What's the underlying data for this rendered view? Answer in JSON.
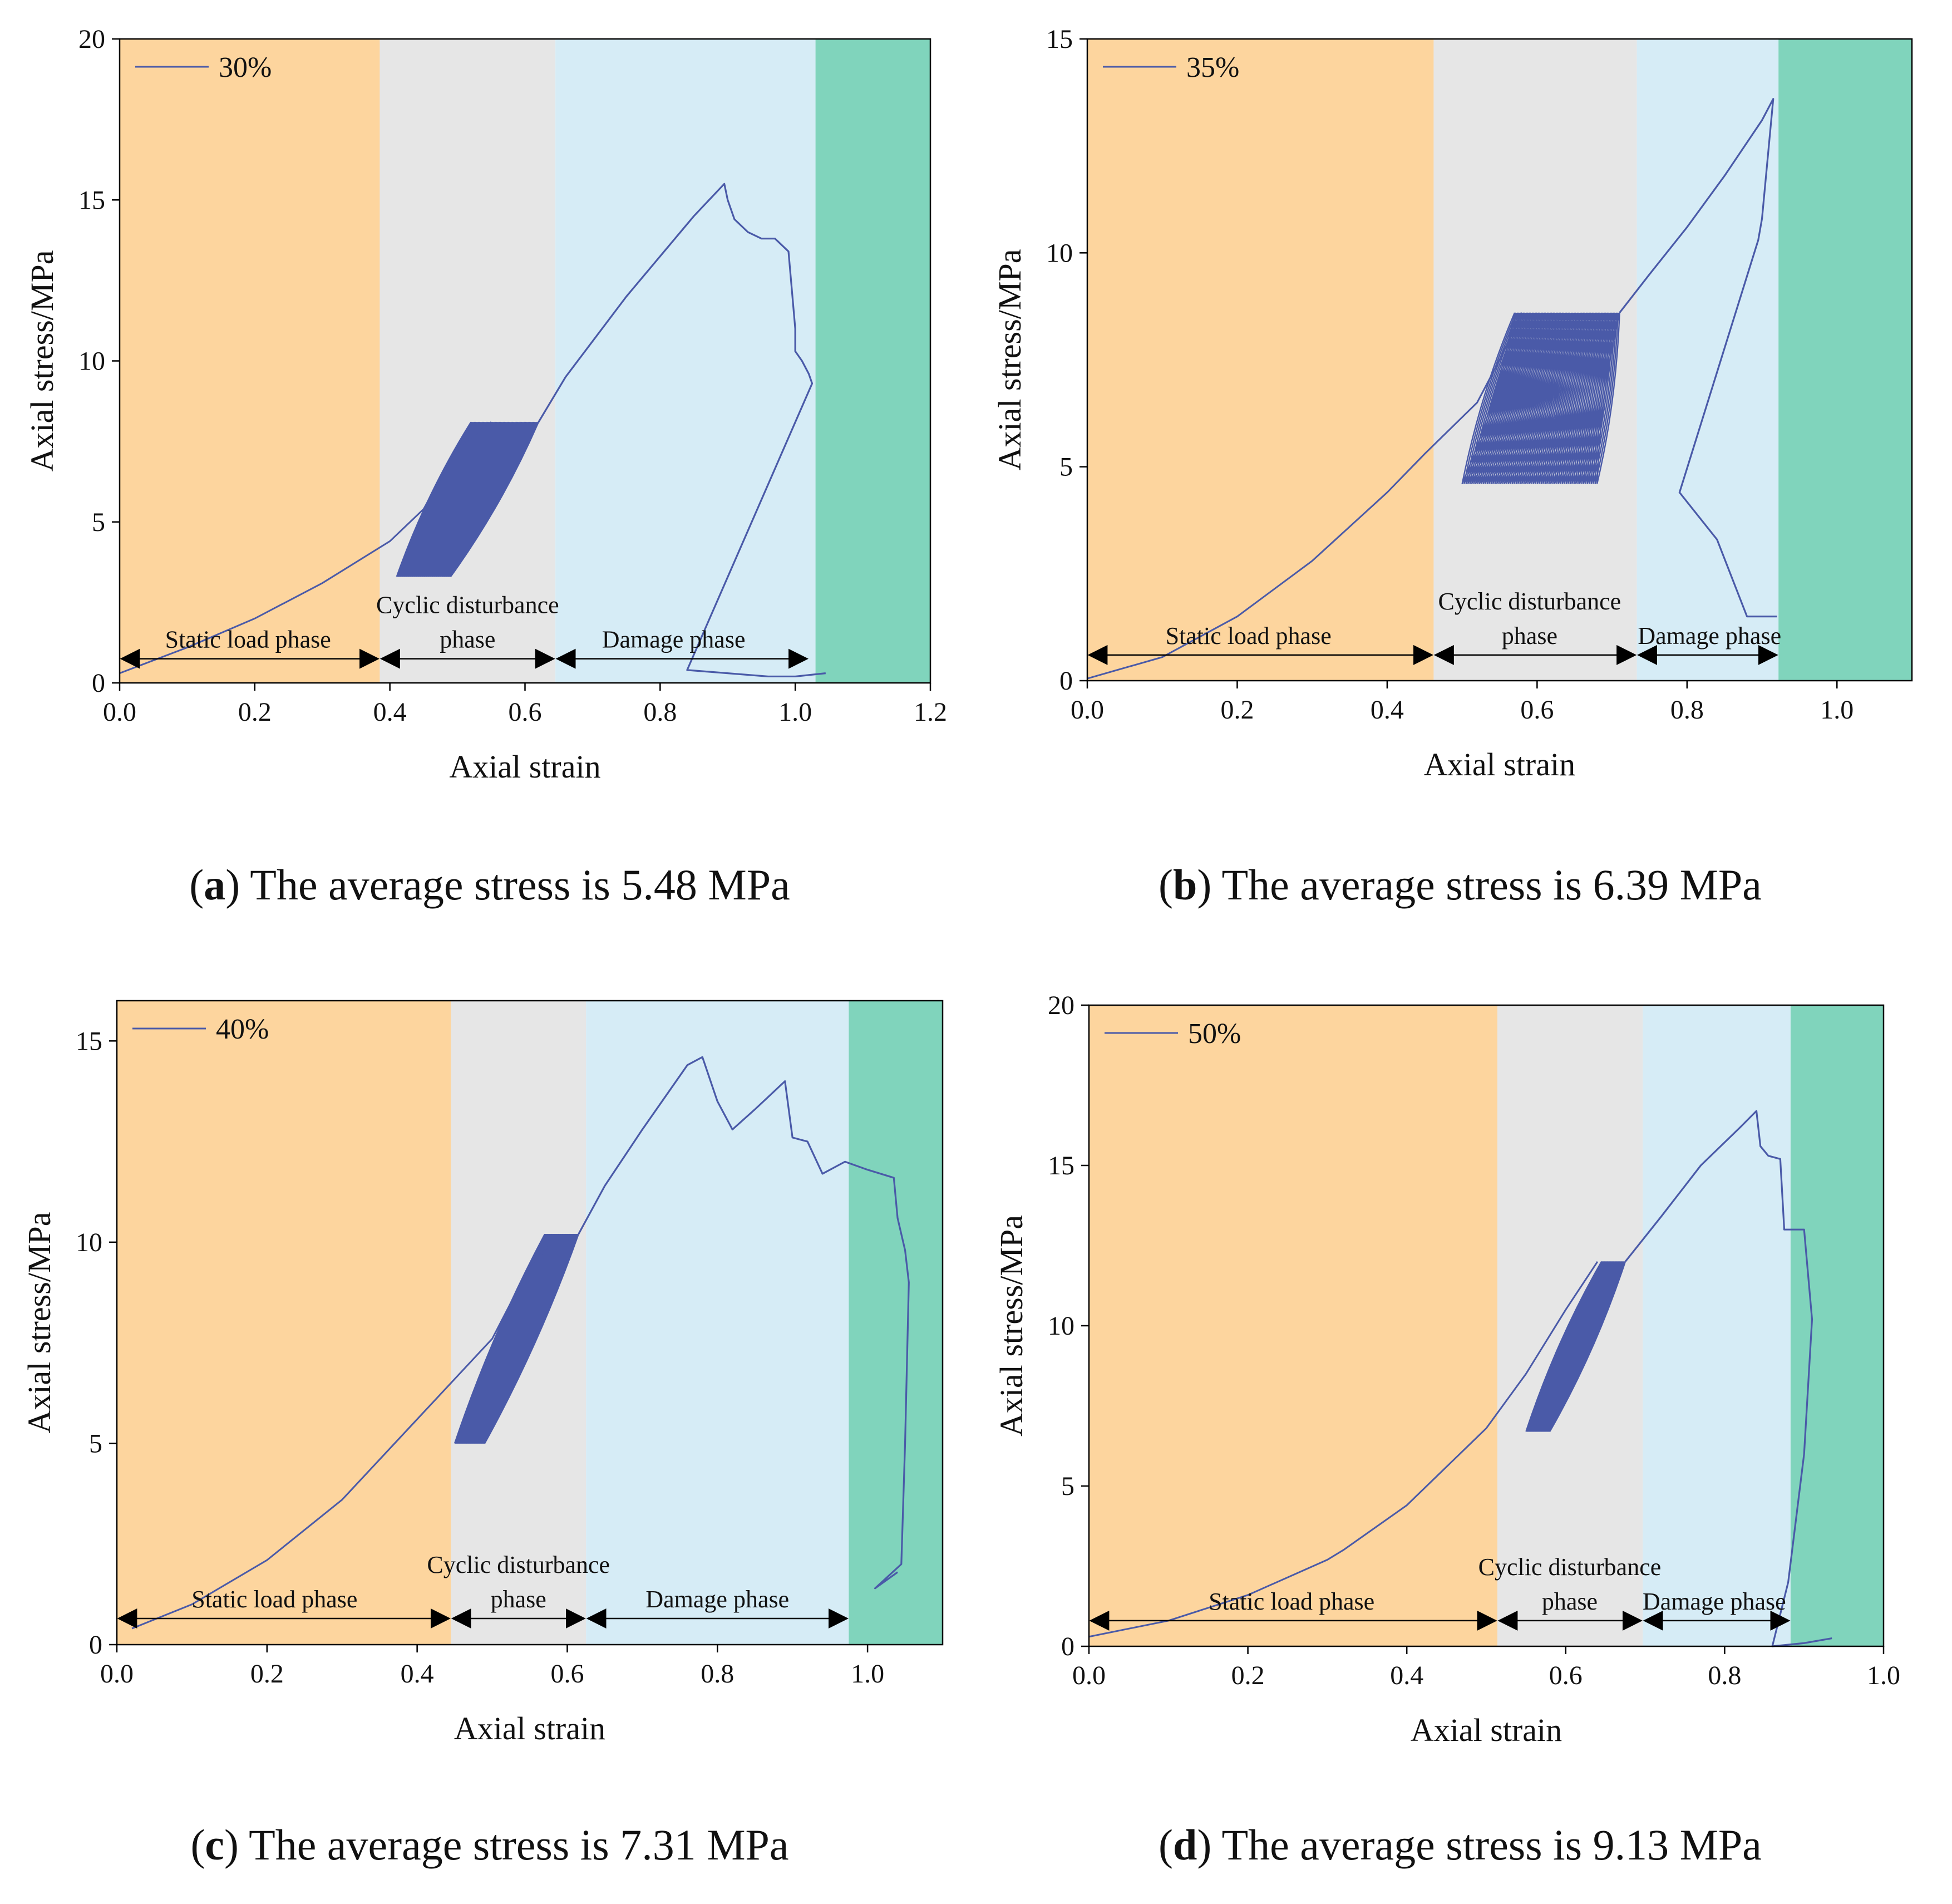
{
  "colors": {
    "static": "#FDD59E",
    "cyclic": "#E6E6E6",
    "damage": "#D6ECF6",
    "failure": "#80D4BC",
    "curve": "#4A5AA8",
    "arrow": "#000000"
  },
  "chart_data": [
    {
      "type": "line",
      "panel_letter": "a",
      "caption_text": " The average stress is 5.48 MPa",
      "xlabel": "Axial strain",
      "ylabel": "Axial stress/MPa",
      "xlim": [
        0,
        1.2
      ],
      "ylim": [
        0,
        20
      ],
      "xticks": [
        0.0,
        0.2,
        0.4,
        0.6,
        0.8,
        1.0,
        1.2
      ],
      "xtick_labels": [
        "0.0",
        "0.2",
        "0.4",
        "0.6",
        "0.8",
        "1.0",
        "1.2"
      ],
      "yticks": [
        0,
        5,
        10,
        15,
        20
      ],
      "ytick_labels": [
        "0",
        "5",
        "10",
        "15",
        "20"
      ],
      "legend": "30%",
      "phases": [
        {
          "key": "static",
          "from": 0.0,
          "to": 0.385
        },
        {
          "key": "cyclic",
          "from": 0.385,
          "to": 0.645
        },
        {
          "key": "damage",
          "from": 0.645,
          "to": 1.03
        },
        {
          "key": "failure",
          "from": 1.03,
          "to": 1.2
        }
      ],
      "phase_labels": [
        {
          "lines": [
            "Static load phase"
          ],
          "x": 0.19,
          "x_from": 0.0,
          "x_to": 0.385
        },
        {
          "lines": [
            "Cyclic disturbance",
            "phase"
          ],
          "x": 0.515,
          "x_from": 0.385,
          "x_to": 0.645
        },
        {
          "lines": [
            "Damage phase"
          ],
          "x": 0.82,
          "x_from": 0.645,
          "x_to": 1.02
        }
      ],
      "arrow_y": 0.75,
      "loading_curve": [
        [
          0,
          0.3
        ],
        [
          0.1,
          1.1
        ],
        [
          0.2,
          2.0
        ],
        [
          0.3,
          3.1
        ],
        [
          0.4,
          4.4
        ],
        [
          0.45,
          5.4
        ],
        [
          0.5,
          7.3
        ],
        [
          0.55,
          8.1
        ]
      ],
      "cycles": {
        "x_min_start": 0.41,
        "x_min_end": 0.49,
        "y_min": 3.3,
        "x_max_start": 0.52,
        "x_max_end": 0.62,
        "y_max": 8.1
      },
      "post_curve": [
        [
          0.62,
          8.1
        ],
        [
          0.66,
          9.5
        ],
        [
          0.75,
          12.0
        ],
        [
          0.85,
          14.5
        ],
        [
          0.895,
          15.5
        ],
        [
          0.9,
          15.0
        ],
        [
          0.91,
          14.4
        ],
        [
          0.93,
          14.0
        ],
        [
          0.95,
          13.8
        ],
        [
          0.97,
          13.8
        ],
        [
          0.99,
          13.4
        ],
        [
          1.0,
          11.0
        ],
        [
          1.0,
          10.3
        ],
        [
          1.01,
          10.0
        ],
        [
          1.02,
          9.6
        ],
        [
          1.025,
          9.3
        ],
        [
          0.84,
          0.4
        ],
        [
          0.96,
          0.2
        ],
        [
          1.0,
          0.2
        ],
        [
          1.045,
          0.3
        ]
      ]
    },
    {
      "type": "line",
      "panel_letter": "b",
      "caption_text": " The average stress is 6.39 MPa",
      "xlabel": "Axial strain",
      "ylabel": "Axial stress/MPa",
      "xlim": [
        0,
        1.1
      ],
      "ylim": [
        0,
        15
      ],
      "xticks": [
        0.0,
        0.2,
        0.4,
        0.6,
        0.8,
        1.0
      ],
      "xtick_labels": [
        "0.0",
        "0.2",
        "0.4",
        "0.6",
        "0.8",
        "1.0"
      ],
      "yticks": [
        0,
        5,
        10,
        15
      ],
      "ytick_labels": [
        "0",
        "5",
        "10",
        "15"
      ],
      "legend": "35%",
      "phases": [
        {
          "key": "static",
          "from": 0.0,
          "to": 0.462
        },
        {
          "key": "cyclic",
          "from": 0.462,
          "to": 0.733
        },
        {
          "key": "damage",
          "from": 0.733,
          "to": 0.922
        },
        {
          "key": "failure",
          "from": 0.922,
          "to": 1.1
        }
      ],
      "phase_labels": [
        {
          "lines": [
            "Static load phase"
          ],
          "x": 0.215,
          "x_from": 0.0,
          "x_to": 0.462
        },
        {
          "lines": [
            "Cyclic disturbance",
            "phase"
          ],
          "x": 0.59,
          "x_from": 0.462,
          "x_to": 0.733
        },
        {
          "lines": [
            "Damage phase"
          ],
          "x": 0.83,
          "x_from": 0.733,
          "x_to": 0.922
        }
      ],
      "arrow_y": 0.6,
      "loading_curve": [
        [
          0,
          0.05
        ],
        [
          0.1,
          0.55
        ],
        [
          0.2,
          1.5
        ],
        [
          0.3,
          2.8
        ],
        [
          0.4,
          4.4
        ],
        [
          0.45,
          5.3
        ],
        [
          0.52,
          6.5
        ],
        [
          0.55,
          7.5
        ],
        [
          0.58,
          8.6
        ]
      ],
      "cycles": {
        "x_min_start": 0.5,
        "x_min_end": 0.68,
        "y_min": 4.6,
        "x_max_start": 0.57,
        "x_max_end": 0.71,
        "y_max": 8.6
      },
      "post_curve": [
        [
          0.71,
          8.6
        ],
        [
          0.75,
          9.5
        ],
        [
          0.8,
          10.6
        ],
        [
          0.85,
          11.8
        ],
        [
          0.9,
          13.1
        ],
        [
          0.915,
          13.6
        ],
        [
          0.9,
          10.8
        ],
        [
          0.895,
          10.3
        ],
        [
          0.79,
          4.4
        ],
        [
          0.84,
          3.3
        ],
        [
          0.88,
          1.5
        ],
        [
          0.91,
          1.5
        ],
        [
          0.92,
          1.5
        ]
      ]
    },
    {
      "type": "line",
      "panel_letter": "c",
      "caption_text": " The average stress is 7.31 MPa",
      "xlabel": "Axial strain",
      "ylabel": "Axial stress/MPa",
      "xlim": [
        0,
        1.1
      ],
      "ylim": [
        0,
        16
      ],
      "xticks": [
        0.0,
        0.2,
        0.4,
        0.6,
        0.8,
        1.0
      ],
      "xtick_labels": [
        "0.0",
        "0.2",
        "0.4",
        "0.6",
        "0.8",
        "1.0"
      ],
      "yticks": [
        0,
        5,
        10,
        15
      ],
      "ytick_labels": [
        "0",
        "5",
        "10",
        "15"
      ],
      "legend": "40%",
      "phases": [
        {
          "key": "static",
          "from": 0.0,
          "to": 0.445
        },
        {
          "key": "cyclic",
          "from": 0.445,
          "to": 0.625
        },
        {
          "key": "damage",
          "from": 0.625,
          "to": 0.975
        },
        {
          "key": "failure",
          "from": 0.975,
          "to": 1.1
        }
      ],
      "phase_labels": [
        {
          "lines": [
            "Static load phase"
          ],
          "x": 0.21,
          "x_from": 0.0,
          "x_to": 0.445
        },
        {
          "lines": [
            "Cyclic disturbance",
            "phase"
          ],
          "x": 0.535,
          "x_from": 0.445,
          "x_to": 0.625
        },
        {
          "lines": [
            "Damage phase"
          ],
          "x": 0.8,
          "x_from": 0.625,
          "x_to": 0.975
        }
      ],
      "arrow_y": 0.65,
      "loading_curve": [
        [
          0.02,
          0.4
        ],
        [
          0.1,
          1.0
        ],
        [
          0.2,
          2.1
        ],
        [
          0.3,
          3.6
        ],
        [
          0.4,
          5.6
        ],
        [
          0.5,
          7.6
        ],
        [
          0.55,
          9.4
        ],
        [
          0.58,
          10.0
        ]
      ],
      "cycles": {
        "x_min_start": 0.45,
        "x_min_end": 0.49,
        "y_min": 5.0,
        "x_max_start": 0.57,
        "x_max_end": 0.615,
        "y_max": 10.2
      },
      "post_curve": [
        [
          0.615,
          10.2
        ],
        [
          0.65,
          11.4
        ],
        [
          0.7,
          12.8
        ],
        [
          0.76,
          14.4
        ],
        [
          0.78,
          14.6
        ],
        [
          0.8,
          13.5
        ],
        [
          0.82,
          12.8
        ],
        [
          0.85,
          13.3
        ],
        [
          0.89,
          14.0
        ],
        [
          0.9,
          12.6
        ],
        [
          0.92,
          12.5
        ],
        [
          0.94,
          11.7
        ],
        [
          0.97,
          12.0
        ],
        [
          1.0,
          11.8
        ],
        [
          1.035,
          11.6
        ],
        [
          1.04,
          10.6
        ],
        [
          1.05,
          9.8
        ],
        [
          1.055,
          9.0
        ],
        [
          1.05,
          5.0
        ],
        [
          1.045,
          2.0
        ],
        [
          1.01,
          1.4
        ],
        [
          1.04,
          1.8
        ]
      ]
    },
    {
      "type": "line",
      "panel_letter": "d",
      "caption_text": " The average stress is 9.13 MPa",
      "xlabel": "Axial strain",
      "ylabel": "Axial stress/MPa",
      "xlim": [
        0,
        1.0
      ],
      "ylim": [
        0,
        20
      ],
      "xticks": [
        0.0,
        0.2,
        0.4,
        0.6,
        0.8,
        1.0
      ],
      "xtick_labels": [
        "0.0",
        "0.2",
        "0.4",
        "0.6",
        "0.8",
        "1.0"
      ],
      "yticks": [
        0,
        5,
        10,
        15,
        20
      ],
      "ytick_labels": [
        "0",
        "5",
        "10",
        "15",
        "20"
      ],
      "legend": "50%",
      "phases": [
        {
          "key": "static",
          "from": 0.0,
          "to": 0.514
        },
        {
          "key": "cyclic",
          "from": 0.514,
          "to": 0.697
        },
        {
          "key": "damage",
          "from": 0.697,
          "to": 0.883
        },
        {
          "key": "failure",
          "from": 0.883,
          "to": 1.0
        }
      ],
      "phase_labels": [
        {
          "lines": [
            "Static load phase"
          ],
          "x": 0.255,
          "x_from": 0.0,
          "x_to": 0.514
        },
        {
          "lines": [
            "Cyclic disturbance",
            "phase"
          ],
          "x": 0.605,
          "x_from": 0.514,
          "x_to": 0.697
        },
        {
          "lines": [
            "Damage phase"
          ],
          "x": 0.787,
          "x_from": 0.697,
          "x_to": 0.883
        }
      ],
      "arrow_y": 0.8,
      "loading_curve": [
        [
          0,
          0.3
        ],
        [
          0.1,
          0.8
        ],
        [
          0.2,
          1.6
        ],
        [
          0.3,
          2.7
        ],
        [
          0.32,
          3.0
        ],
        [
          0.4,
          4.4
        ],
        [
          0.5,
          6.8
        ],
        [
          0.55,
          8.5
        ],
        [
          0.6,
          10.5
        ],
        [
          0.64,
          12.0
        ]
      ],
      "cycles": {
        "x_min_start": 0.55,
        "x_min_end": 0.58,
        "y_min": 6.7,
        "x_max_start": 0.645,
        "x_max_end": 0.675,
        "y_max": 12.0
      },
      "post_curve": [
        [
          0.675,
          12.0
        ],
        [
          0.72,
          13.4
        ],
        [
          0.77,
          15.0
        ],
        [
          0.82,
          16.2
        ],
        [
          0.84,
          16.7
        ],
        [
          0.845,
          15.6
        ],
        [
          0.855,
          15.3
        ],
        [
          0.87,
          15.2
        ],
        [
          0.875,
          13.0
        ],
        [
          0.9,
          13.0
        ],
        [
          0.91,
          10.2
        ],
        [
          0.9,
          6.0
        ],
        [
          0.88,
          2.0
        ],
        [
          0.86,
          0.0
        ],
        [
          0.9,
          0.1
        ],
        [
          0.935,
          0.25
        ]
      ]
    }
  ]
}
